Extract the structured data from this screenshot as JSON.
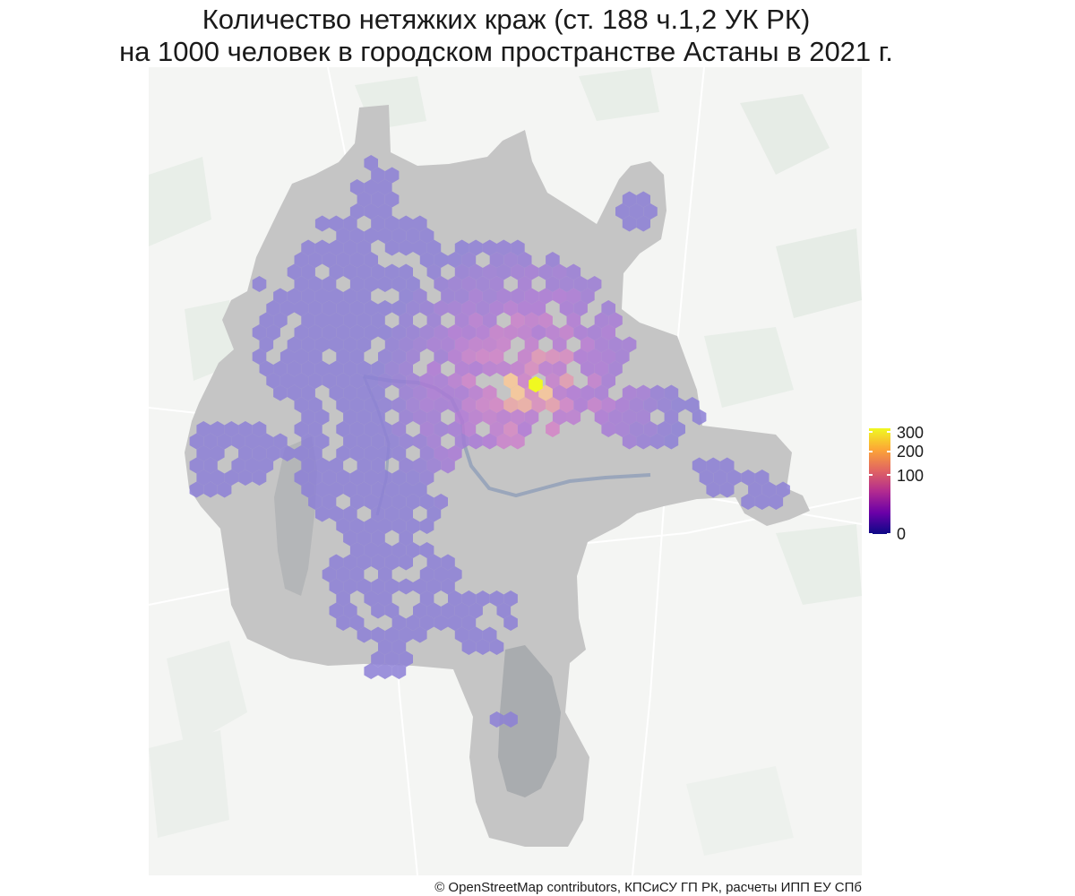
{
  "title": {
    "line1": "Количество нетяжких краж (ст. 188 ч.1,2 УК РК)",
    "line2": "на 1000 человек в городском пространстве Астаны в 2021 г."
  },
  "legend": {
    "scale": "sqrt",
    "min": 0,
    "max": 300,
    "ticks": [
      {
        "value": 0,
        "label": "0"
      },
      {
        "value": 100,
        "label": "100"
      },
      {
        "value": 200,
        "label": "200"
      },
      {
        "value": 300,
        "label": "300"
      }
    ],
    "colors": [
      "#0d0887",
      "#6a00a8",
      "#b12a90",
      "#e16462",
      "#fca636",
      "#f0f921"
    ]
  },
  "map": {
    "city_fill": "#c4c4c4",
    "basemap_fill": "#f4f5f3",
    "green_areas": "#e6ece6",
    "water": "#9aa6b6",
    "hex_base_color": "#8c7fd6"
  },
  "attribution": "© OpenStreetMap contributors, КПСиСУ ГП РК, расчеты ИПП ЕУ СПб"
}
